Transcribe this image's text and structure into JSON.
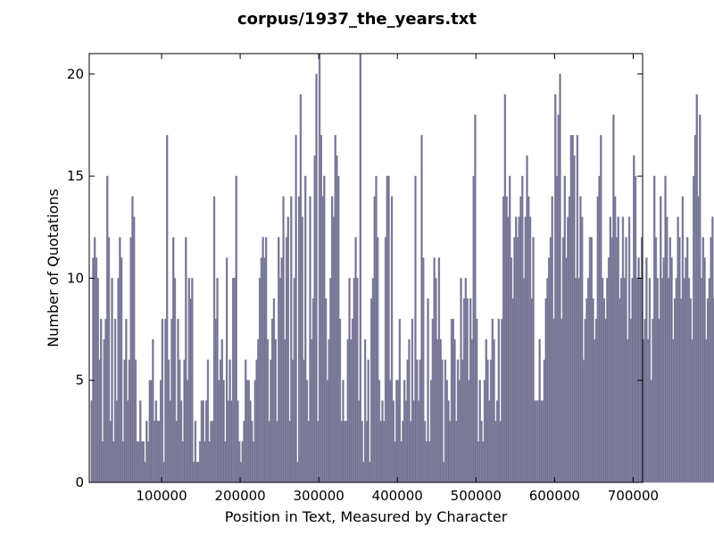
{
  "chart_data": {
    "type": "bar",
    "title": "corpus/1937_the_years.txt",
    "xlabel": "Position in Text, Measured by Character",
    "ylabel": "Number of Quotations",
    "xlim": [
      8000,
      712000
    ],
    "ylim": [
      0,
      21
    ],
    "xticks": [
      100000,
      200000,
      300000,
      400000,
      500000,
      600000,
      700000
    ],
    "xtick_labels": [
      "100000",
      "200000",
      "300000",
      "400000",
      "500000",
      "600000",
      "700000"
    ],
    "yticks": [
      0,
      5,
      10,
      15,
      20
    ],
    "ytick_labels": [
      "0",
      "5",
      "10",
      "15",
      "20"
    ],
    "grid": false,
    "bar_color": "#707095",
    "bar_edge_color": "#8a8aa0",
    "x_start": 10000,
    "bin_width": 2000,
    "values": [
      4,
      11,
      12,
      11,
      10,
      6,
      8,
      2,
      7,
      8,
      15,
      12,
      3,
      10,
      2,
      8,
      4,
      10,
      12,
      11,
      2,
      6,
      8,
      4,
      6,
      12,
      14,
      13,
      6,
      2,
      2,
      4,
      2,
      2,
      1,
      3,
      2,
      5,
      5,
      7,
      3,
      4,
      3,
      3,
      5,
      8,
      1,
      8,
      17,
      6,
      4,
      8,
      12,
      10,
      3,
      8,
      6,
      4,
      2,
      6,
      12,
      5,
      10,
      9,
      10,
      1,
      3,
      1,
      1,
      2,
      4,
      4,
      2,
      4,
      6,
      2,
      3,
      3,
      14,
      8,
      10,
      5,
      6,
      7,
      5,
      2,
      11,
      4,
      6,
      4,
      10,
      10,
      15,
      4,
      2,
      1,
      2,
      3,
      6,
      5,
      5,
      4,
      3,
      2,
      5,
      6,
      7,
      10,
      11,
      12,
      11,
      12,
      7,
      3,
      6,
      8,
      9,
      7,
      3,
      12,
      10,
      11,
      14,
      7,
      12,
      13,
      3,
      14,
      6,
      10,
      17,
      1,
      14,
      19,
      13,
      6,
      15,
      5,
      3,
      14,
      7,
      9,
      16,
      20,
      3,
      21,
      17,
      14,
      15,
      9,
      5,
      7,
      10,
      14,
      13,
      17,
      16,
      15,
      8,
      3,
      5,
      3,
      3,
      7,
      10,
      7,
      8,
      10,
      12,
      10,
      4,
      21,
      3,
      1,
      7,
      3,
      6,
      1,
      9,
      10,
      14,
      15,
      12,
      5,
      3,
      4,
      3,
      12,
      15,
      15,
      5,
      14,
      4,
      2,
      5,
      5,
      8,
      2,
      3,
      5,
      4,
      6,
      7,
      3,
      8,
      4,
      15,
      6,
      4,
      6,
      17,
      11,
      3,
      2,
      9,
      2,
      5,
      8,
      11,
      10,
      7,
      11,
      7,
      6,
      1,
      6,
      5,
      4,
      3,
      8,
      8,
      7,
      3,
      6,
      5,
      10,
      6,
      9,
      10,
      9,
      5,
      9,
      7,
      15,
      18,
      8,
      2,
      5,
      3,
      2,
      5,
      7,
      6,
      4,
      6,
      8,
      7,
      3,
      4,
      8,
      3,
      8,
      14,
      19,
      14,
      13,
      15,
      11,
      9,
      12,
      13,
      12,
      13,
      14,
      15,
      10,
      13,
      16,
      14,
      13,
      9,
      12,
      4,
      4,
      4,
      7,
      4,
      4,
      6,
      9,
      10,
      11,
      12,
      14,
      8,
      19,
      15,
      18,
      20,
      8,
      12,
      15,
      11,
      13,
      14,
      17,
      17,
      16,
      10,
      17,
      10,
      14,
      13,
      6,
      8,
      9,
      10,
      12,
      12,
      9,
      7,
      8,
      14,
      15,
      17,
      10,
      9,
      8,
      10,
      11,
      13,
      12,
      18,
      14,
      12,
      13,
      9,
      10,
      13,
      10,
      12,
      7,
      13,
      8,
      10,
      16,
      15,
      10,
      11,
      10,
      12,
      7,
      8,
      11,
      7,
      10,
      5,
      8,
      15,
      12,
      10,
      8,
      14,
      10,
      11,
      15,
      13,
      10,
      12,
      11,
      7,
      9,
      10,
      13,
      12,
      9,
      14,
      10,
      11,
      12,
      10,
      9,
      7,
      15,
      17,
      19,
      14,
      18,
      10,
      12,
      11,
      7,
      9,
      10,
      12,
      13,
      9,
      10,
      11,
      8,
      12,
      15,
      19,
      18,
      14,
      17,
      19,
      9,
      10,
      12,
      13,
      11,
      9,
      10,
      12,
      14
    ]
  }
}
